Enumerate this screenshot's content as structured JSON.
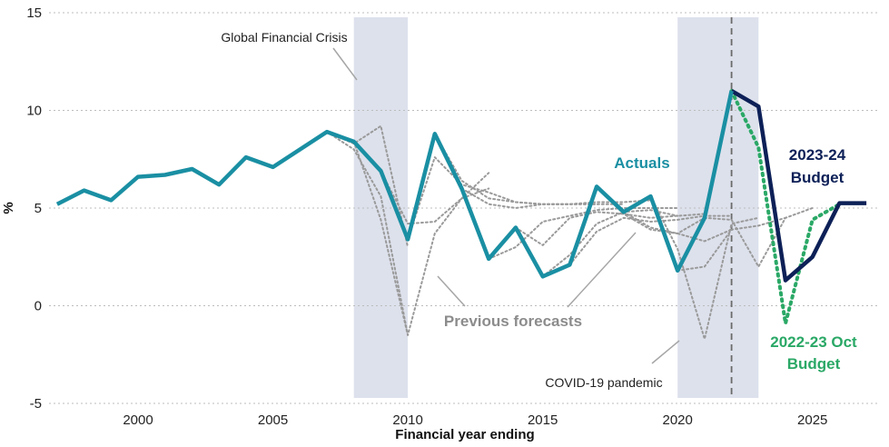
{
  "chart_data": {
    "type": "line",
    "xlabel": "Financial year ending",
    "ylabel": "%",
    "xlim": [
      1996.7,
      2027.5
    ],
    "ylim": [
      -5,
      15
    ],
    "x_ticks": [
      2000,
      2005,
      2010,
      2015,
      2020,
      2025
    ],
    "y_ticks": [
      -5,
      0,
      5,
      10,
      15
    ],
    "grid": "horizontal dotted",
    "colors": {
      "actuals": "#1a8fa3",
      "budget_2023": "#0d2057",
      "budget_2022": "#2aa866",
      "forecasts": "#9a9a9a",
      "shade": "#dde1ec",
      "divider": "#6b6b6b"
    },
    "shaded_periods": [
      {
        "start": 2008,
        "end": 2010,
        "label": "Global Financial Crisis"
      },
      {
        "start": 2020,
        "end": 2023,
        "label": "COVID-19 pandemic"
      }
    ],
    "divider_x": 2022,
    "series": [
      {
        "name": "Actuals",
        "style": "solid",
        "x": [
          1997,
          1998,
          1999,
          2000,
          2001,
          2002,
          2003,
          2004,
          2005,
          2006,
          2007,
          2008,
          2009,
          2010,
          2011,
          2012,
          2013,
          2014,
          2015,
          2016,
          2017,
          2018,
          2019,
          2020,
          2021,
          2022
        ],
        "y": [
          5.2,
          5.9,
          5.4,
          6.6,
          6.7,
          7.0,
          6.2,
          7.6,
          7.1,
          8.0,
          8.9,
          8.4,
          6.9,
          3.4,
          8.8,
          6.0,
          2.4,
          4.0,
          1.5,
          2.1,
          6.1,
          4.8,
          5.6,
          1.8,
          4.5,
          11.0
        ]
      },
      {
        "name": "2023-24 Budget",
        "style": "solid",
        "x": [
          2022,
          2023,
          2024,
          2025,
          2026,
          2027
        ],
        "y": [
          11.0,
          10.2,
          1.3,
          2.5,
          5.25,
          5.25
        ]
      },
      {
        "name": "2022-23 Oct Budget",
        "style": "dotted",
        "x": [
          2022,
          2023,
          2024,
          2025,
          2026
        ],
        "y": [
          11.0,
          8.1,
          -0.9,
          4.4,
          5.2
        ]
      }
    ],
    "previous_forecasts": [
      {
        "x": [
          2007,
          2008,
          2009,
          2010
        ],
        "y": [
          8.9,
          8.0,
          5.6,
          -1.5
        ]
      },
      {
        "x": [
          2007,
          2008,
          2009,
          2010
        ],
        "y": [
          8.9,
          8.3,
          9.2,
          3.0
        ]
      },
      {
        "x": [
          2008,
          2009,
          2010,
          2011,
          2012,
          2013
        ],
        "y": [
          8.4,
          4.4,
          -1.5,
          3.7,
          5.5,
          6.8
        ]
      },
      {
        "x": [
          2009,
          2010,
          2011,
          2012,
          2013
        ],
        "y": [
          6.9,
          4.2,
          4.3,
          5.5,
          6.0
        ]
      },
      {
        "x": [
          2010,
          2011,
          2012,
          2013,
          2014,
          2015,
          2016,
          2017
        ],
        "y": [
          3.4,
          7.6,
          6.2,
          5.8,
          5.3,
          5.2,
          5.2,
          5.2
        ]
      },
      {
        "x": [
          2011,
          2012,
          2013,
          2014,
          2015,
          2016,
          2017,
          2018
        ],
        "y": [
          8.8,
          6.4,
          5.5,
          5.3,
          5.2,
          5.2,
          5.2,
          5.2
        ]
      },
      {
        "x": [
          2012,
          2013,
          2014,
          2015,
          2016,
          2017,
          2018,
          2019
        ],
        "y": [
          6.0,
          5.2,
          5.0,
          5.2,
          5.2,
          5.3,
          5.3,
          5.4
        ]
      },
      {
        "x": [
          2013,
          2014,
          2015,
          2016,
          2017,
          2018,
          2019,
          2020
        ],
        "y": [
          2.4,
          3.0,
          4.3,
          4.6,
          4.9,
          5.0,
          5.0,
          5.0
        ]
      },
      {
        "x": [
          2014,
          2015,
          2016,
          2017,
          2018,
          2019,
          2020,
          2021
        ],
        "y": [
          4.0,
          3.1,
          4.5,
          4.8,
          4.7,
          4.5,
          4.6,
          4.7
        ]
      },
      {
        "x": [
          2015,
          2016,
          2017,
          2018,
          2019,
          2020
        ],
        "y": [
          1.5,
          2.6,
          4.2,
          4.8,
          4.9,
          4.6
        ]
      },
      {
        "x": [
          2016,
          2017,
          2018,
          2019,
          2020,
          2021,
          2022
        ],
        "y": [
          2.1,
          3.8,
          4.5,
          4.3,
          4.4,
          4.6,
          4.6
        ]
      },
      {
        "x": [
          2017,
          2018,
          2019,
          2020,
          2021
        ],
        "y": [
          6.1,
          4.7,
          3.9,
          3.7,
          4.5
        ]
      },
      {
        "x": [
          2018,
          2019,
          2020,
          2021,
          2022
        ],
        "y": [
          4.8,
          4.0,
          3.7,
          3.3,
          3.9
        ]
      },
      {
        "x": [
          2019,
          2020,
          2021,
          2022,
          2023
        ],
        "y": [
          5.6,
          2.9,
          -1.7,
          4.2,
          4.5
        ]
      },
      {
        "x": [
          2020,
          2021,
          2022,
          2023,
          2024
        ],
        "y": [
          1.8,
          2.0,
          3.9,
          4.1,
          4.5
        ]
      },
      {
        "x": [
          2021,
          2022,
          2023,
          2024,
          2025
        ],
        "y": [
          4.5,
          4.4,
          2.0,
          4.5,
          5.0
        ]
      }
    ],
    "annotations": {
      "gfc": "Global Financial Crisis",
      "covid": "COVID-19 pandemic",
      "previous_forecasts": "Previous forecasts",
      "actuals": "Actuals",
      "budget_2023_line1": "2023-24",
      "budget_2023_line2": "Budget",
      "budget_2022_line1": "2022-23 Oct",
      "budget_2022_line2": "Budget"
    }
  }
}
